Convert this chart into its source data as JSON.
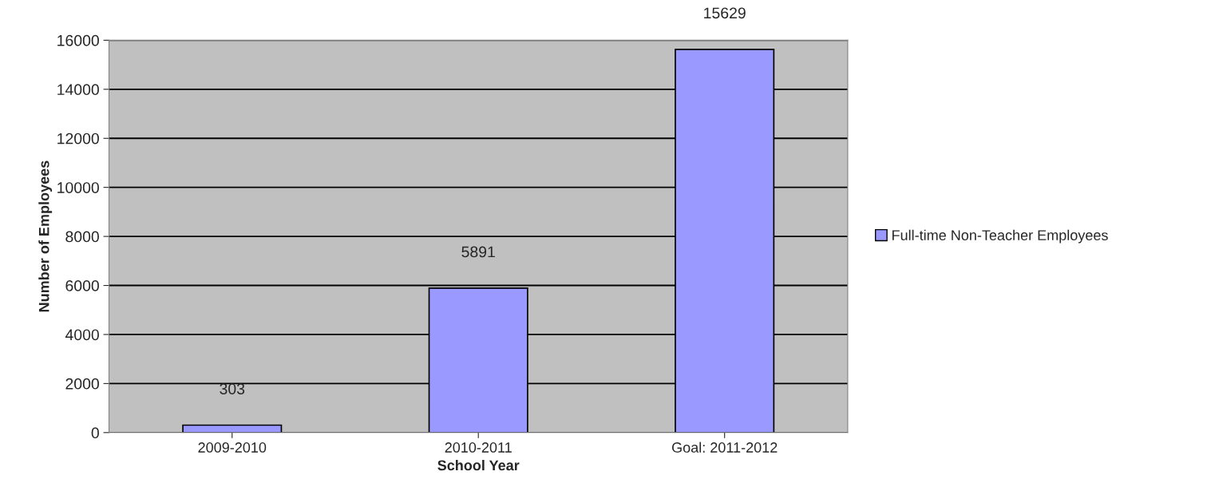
{
  "chart_data": {
    "type": "bar",
    "xlabel": "School Year",
    "ylabel": "Number of Employees",
    "categories": [
      "2009-2010",
      "2010-2011",
      "Goal: 2011-2012"
    ],
    "series": [
      {
        "name": "Full-time Non-Teacher Employees",
        "color": "#9999ff",
        "values": [
          303,
          5891,
          15629
        ]
      }
    ],
    "ylim": [
      0,
      16000
    ],
    "yticks": [
      0,
      2000,
      4000,
      6000,
      8000,
      10000,
      12000,
      14000,
      16000
    ],
    "grid": "y",
    "legend": "right",
    "data_labels": true
  }
}
